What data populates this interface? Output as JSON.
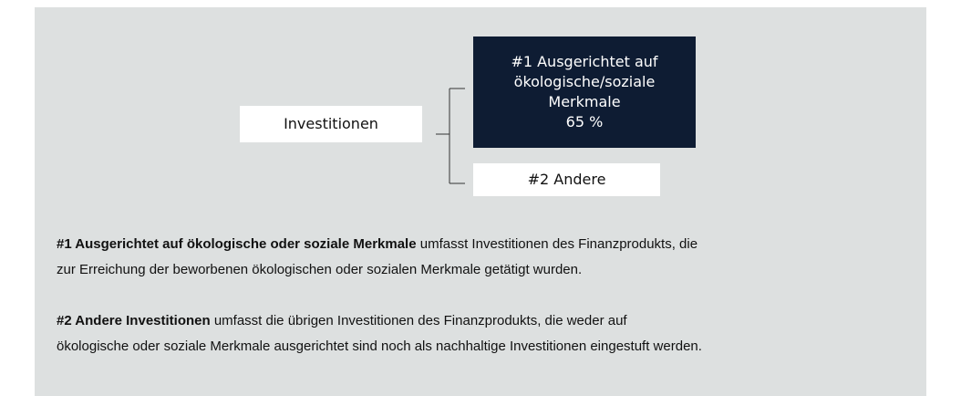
{
  "diagram": {
    "nodes": [
      {
        "id": "root",
        "lines": [
          "Investitionen"
        ]
      },
      {
        "id": "n1",
        "lines": [
          "#1 Ausgerichtet auf",
          "ökologische/soziale",
          "Merkmale",
          "65 %"
        ]
      },
      {
        "id": "n2",
        "lines": [
          "#2 Andere"
        ]
      }
    ]
  },
  "legend": {
    "paragraphs": [
      {
        "bold": "#1 Ausgerichtet auf ökologische oder soziale Merkmale",
        "lines": [
          " umfasst Investitionen des Finanzprodukts, die",
          "zur Erreichung der beworbenen ökologischen oder sozialen Merkmale getätigt wurden."
        ]
      },
      {
        "bold": "#2 Andere Investitionen",
        "lines": [
          " umfasst die übrigen Investitionen des Finanzprodukts, die weder auf",
          "ökologische oder soziale Merkmale ausgerichtet sind noch als nachhaltige Investitionen eingestuft werden."
        ]
      }
    ]
  }
}
